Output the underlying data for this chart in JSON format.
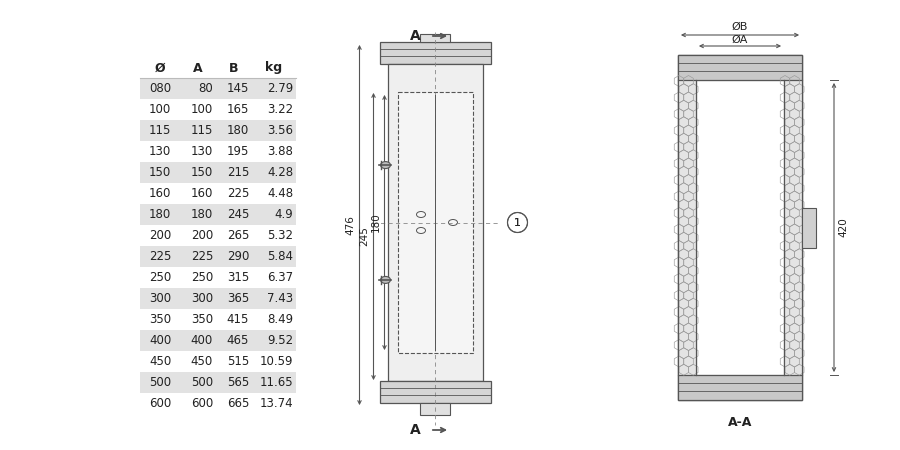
{
  "table_headers": [
    "Ø",
    "A",
    "B",
    "kg"
  ],
  "table_rows": [
    [
      "080",
      "80",
      "145",
      "2.79"
    ],
    [
      "100",
      "100",
      "165",
      "3.22"
    ],
    [
      "115",
      "115",
      "180",
      "3.56"
    ],
    [
      "130",
      "130",
      "195",
      "3.88"
    ],
    [
      "150",
      "150",
      "215",
      "4.28"
    ],
    [
      "160",
      "160",
      "225",
      "4.48"
    ],
    [
      "180",
      "180",
      "245",
      "4.9"
    ],
    [
      "200",
      "200",
      "265",
      "5.32"
    ],
    [
      "225",
      "225",
      "290",
      "5.84"
    ],
    [
      "250",
      "250",
      "315",
      "6.37"
    ],
    [
      "300",
      "300",
      "365",
      "7.43"
    ],
    [
      "350",
      "350",
      "415",
      "8.49"
    ],
    [
      "400",
      "400",
      "465",
      "9.52"
    ],
    [
      "450",
      "450",
      "515",
      "10.59"
    ],
    [
      "500",
      "500",
      "565",
      "11.65"
    ],
    [
      "600",
      "600",
      "665",
      "13.74"
    ]
  ],
  "shaded_rows": [
    0,
    2,
    4,
    6,
    8,
    10,
    12,
    14
  ],
  "bg_color": "#ffffff",
  "shade_color": "#e2e2e2",
  "line_color": "#555555",
  "text_color": "#222222"
}
